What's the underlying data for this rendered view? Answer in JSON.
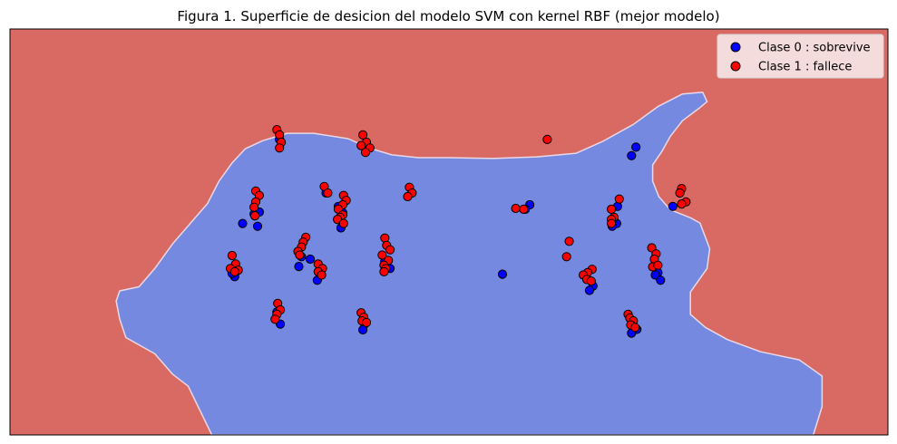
{
  "chart_data": {
    "type": "scatter",
    "title": "Figura 1. Superficie de desicion del modelo SVM con kernel RBF (mejor modelo)",
    "xlabel": "",
    "ylabel": "",
    "xlim": [
      0,
      100
    ],
    "ylim": [
      0,
      100
    ],
    "axis_ticks": "none",
    "grid": false,
    "legend_position": "top-right",
    "background_region": {
      "label": "Clase 1 region",
      "color": "#d96963"
    },
    "decision_region": {
      "label": "Clase 0 region",
      "color": "#7489df",
      "boundary_color": "#e9d9e6",
      "polygon": [
        [
          12.1,
          33
        ],
        [
          12.5,
          35.5
        ],
        [
          14.7,
          36.5
        ],
        [
          16.5,
          41
        ],
        [
          18.5,
          47
        ],
        [
          20.5,
          52
        ],
        [
          22.5,
          57
        ],
        [
          23.8,
          62.5
        ],
        [
          25.3,
          67
        ],
        [
          26.8,
          70.5
        ],
        [
          28.8,
          72.5
        ],
        [
          31.6,
          74.3
        ],
        [
          34.6,
          74.3
        ],
        [
          38.5,
          73
        ],
        [
          41,
          70.6
        ],
        [
          43.5,
          69
        ],
        [
          46.5,
          68.3
        ],
        [
          50,
          68.3
        ],
        [
          55,
          68.1
        ],
        [
          60,
          68.5
        ],
        [
          64.5,
          69.4
        ],
        [
          67.5,
          72.3
        ],
        [
          71,
          76.5
        ],
        [
          73.8,
          80.9
        ],
        [
          76.6,
          84
        ],
        [
          78.9,
          84.4
        ],
        [
          79.4,
          82.1
        ],
        [
          78.5,
          80.5
        ],
        [
          76.6,
          77.4
        ],
        [
          75.2,
          73.5
        ],
        [
          74.3,
          70
        ],
        [
          73.2,
          66.5
        ],
        [
          73.2,
          62.5
        ],
        [
          73.9,
          58.7
        ],
        [
          75.2,
          55.5
        ],
        [
          77.5,
          53.5
        ],
        [
          78.6,
          52.2
        ],
        [
          79.7,
          45.9
        ],
        [
          79.4,
          41
        ],
        [
          77.5,
          35.2
        ],
        [
          77.5,
          29.7
        ],
        [
          79.2,
          26.5
        ],
        [
          81.7,
          23.5
        ],
        [
          85.5,
          20.5
        ],
        [
          89.9,
          18.5
        ],
        [
          92.5,
          14.5
        ],
        [
          92.5,
          7
        ],
        [
          91.5,
          0
        ],
        [
          23,
          0
        ],
        [
          20.3,
          12
        ],
        [
          18.5,
          15
        ],
        [
          16.5,
          20
        ],
        [
          13.2,
          24
        ],
        [
          12.5,
          28.5
        ]
      ]
    },
    "series": [
      {
        "name": "Clase 0 : sobrevive",
        "color": "#0000ff",
        "points": [
          [
            30.7,
            72.8
          ],
          [
            28.4,
            54.9
          ],
          [
            27.9,
            54.0
          ],
          [
            26.5,
            52.1
          ],
          [
            28.2,
            51.4
          ],
          [
            27.8,
            54.4
          ],
          [
            36.0,
            59.6
          ],
          [
            37.4,
            56.3
          ],
          [
            37.9,
            54.7
          ],
          [
            37.7,
            51.0
          ],
          [
            34.2,
            43.3
          ],
          [
            32.9,
            41.5
          ],
          [
            33.2,
            43.9
          ],
          [
            35.0,
            38.1
          ],
          [
            25.6,
            39.0
          ],
          [
            25.8,
            40.5
          ],
          [
            25.3,
            39.8
          ],
          [
            30.8,
            27.3
          ],
          [
            30.4,
            30.3
          ],
          [
            40.4,
            27.3
          ],
          [
            40.2,
            25.9
          ],
          [
            42.7,
            42.7
          ],
          [
            43.3,
            41.0
          ],
          [
            45.8,
            59.6
          ],
          [
            59.2,
            56.7
          ],
          [
            58.7,
            55.6
          ],
          [
            56.1,
            39.6
          ],
          [
            71.3,
            70.9
          ],
          [
            70.8,
            68.8
          ],
          [
            69.2,
            56.3
          ],
          [
            69.1,
            52.1
          ],
          [
            68.6,
            51.4
          ],
          [
            73.8,
            40.0
          ],
          [
            73.5,
            39.4
          ],
          [
            74.1,
            38.1
          ],
          [
            66.4,
            36.7
          ],
          [
            66.0,
            35.6
          ],
          [
            71.4,
            26.0
          ],
          [
            70.8,
            25.1
          ],
          [
            75.5,
            56.3
          ]
        ]
      },
      {
        "name": "Clase 1 : fallece",
        "color": "#ff0000",
        "points": [
          [
            30.4,
            75.2
          ],
          [
            30.7,
            73.9
          ],
          [
            30.9,
            72.1
          ],
          [
            30.7,
            70.7
          ],
          [
            40.2,
            73.9
          ],
          [
            40.6,
            72.1
          ],
          [
            40.0,
            71.3
          ],
          [
            41.0,
            70.7
          ],
          [
            40.5,
            69.6
          ],
          [
            28.0,
            60.1
          ],
          [
            28.4,
            59.0
          ],
          [
            28.0,
            57.4
          ],
          [
            27.8,
            56.1
          ],
          [
            27.9,
            54.0
          ],
          [
            35.8,
            61.2
          ],
          [
            36.2,
            59.6
          ],
          [
            38.0,
            59.0
          ],
          [
            38.3,
            57.8
          ],
          [
            37.9,
            56.7
          ],
          [
            37.4,
            55.6
          ],
          [
            37.9,
            54.2
          ],
          [
            37.6,
            53.6
          ],
          [
            37.3,
            53.1
          ],
          [
            38.0,
            52.1
          ],
          [
            45.5,
            61.0
          ],
          [
            45.8,
            59.6
          ],
          [
            45.3,
            58.7
          ],
          [
            58.5,
            55.6
          ],
          [
            61.2,
            72.8
          ],
          [
            69.4,
            58.1
          ],
          [
            68.5,
            55.6
          ],
          [
            68.8,
            53.6
          ],
          [
            68.5,
            53.1
          ],
          [
            68.5,
            52.1
          ],
          [
            76.5,
            60.7
          ],
          [
            76.3,
            59.6
          ],
          [
            77.0,
            57.4
          ],
          [
            76.5,
            56.9
          ],
          [
            33.7,
            48.7
          ],
          [
            33.4,
            47.5
          ],
          [
            33.2,
            46.3
          ],
          [
            32.8,
            45.2
          ],
          [
            33.0,
            44.3
          ],
          [
            42.7,
            48.5
          ],
          [
            42.9,
            46.7
          ],
          [
            43.3,
            45.6
          ],
          [
            42.4,
            44.3
          ],
          [
            43.1,
            43.0
          ],
          [
            42.6,
            41.8
          ],
          [
            42.8,
            41.0
          ],
          [
            42.6,
            40.2
          ],
          [
            25.3,
            44.2
          ],
          [
            25.7,
            42.1
          ],
          [
            25.1,
            41.0
          ],
          [
            26.0,
            40.6
          ],
          [
            25.6,
            40.2
          ],
          [
            35.1,
            42.1
          ],
          [
            35.6,
            41.0
          ],
          [
            35.1,
            40.2
          ],
          [
            35.5,
            39.4
          ],
          [
            63.7,
            47.7
          ],
          [
            63.4,
            43.9
          ],
          [
            66.3,
            40.8
          ],
          [
            65.8,
            40.0
          ],
          [
            65.3,
            39.4
          ],
          [
            65.7,
            38.3
          ],
          [
            66.2,
            37.9
          ],
          [
            73.1,
            46.1
          ],
          [
            73.6,
            44.6
          ],
          [
            73.4,
            43.3
          ],
          [
            73.2,
            41.4
          ],
          [
            73.8,
            41.8
          ],
          [
            30.5,
            32.4
          ],
          [
            30.8,
            30.8
          ],
          [
            30.4,
            29.7
          ],
          [
            30.2,
            28.5
          ],
          [
            40.0,
            30.1
          ],
          [
            40.3,
            29.0
          ],
          [
            40.1,
            28.1
          ],
          [
            40.6,
            27.7
          ],
          [
            70.4,
            29.7
          ],
          [
            70.6,
            28.8
          ],
          [
            71.0,
            28.1
          ],
          [
            70.7,
            27.1
          ],
          [
            71.2,
            26.5
          ],
          [
            57.6,
            55.8
          ]
        ]
      }
    ]
  }
}
